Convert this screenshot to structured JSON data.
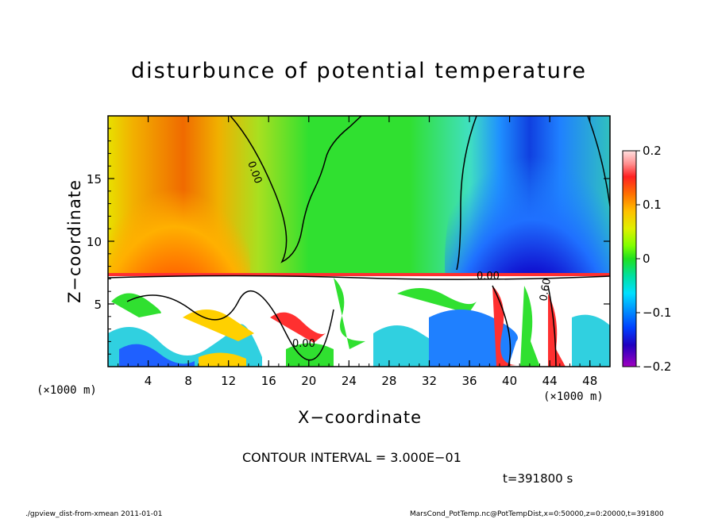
{
  "chart_data": {
    "type": "heatmap",
    "title": "disturbunce of potential temperature",
    "xlabel": "X−coordinate",
    "ylabel": "Z−coordinate",
    "x_unit": "(×1000 m)",
    "xlim": [
      0,
      50
    ],
    "ylim": [
      0,
      20
    ],
    "x_ticks": [
      4,
      8,
      12,
      16,
      20,
      24,
      28,
      32,
      36,
      40,
      44,
      48
    ],
    "y_ticks": [
      5,
      10,
      15
    ],
    "colorbar": {
      "range": [
        -0.2,
        0.2
      ],
      "ticks": [
        "0.2",
        "0.1",
        "0",
        "−0.1",
        "−0.2"
      ]
    },
    "contour_labels": [
      "0.00",
      "0.00",
      "0.00",
      "0.60"
    ],
    "contour_interval": "CONTOUR INTERVAL = 3.000E−01",
    "time": "t=391800 s"
  },
  "footer": {
    "left": "./gpview_dist-from-xmean  2011-01-01",
    "right": "MarsCond_PotTemp.nc@PotTempDist,x=0:50000,z=0:20000,t=391800"
  }
}
